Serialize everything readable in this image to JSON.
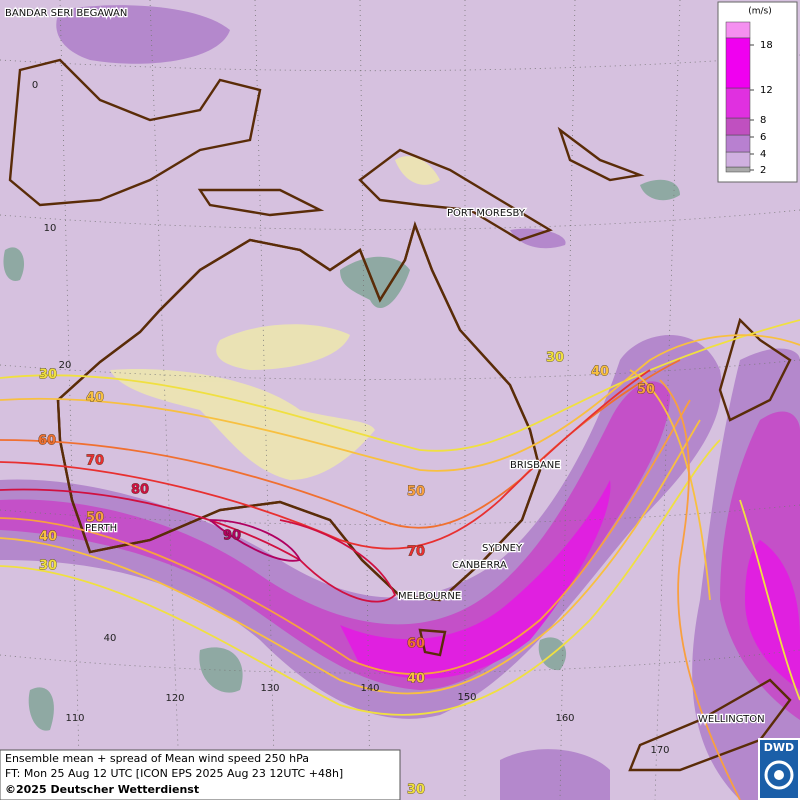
{
  "cities": [
    "BANDAR SERI BEGAWAN",
    "PORT MORESBY",
    "BRISBANE",
    "SYDNEY",
    "CANBERRA",
    "MELBOURNE",
    "PERTH",
    "WELLINGTON"
  ],
  "latitude_labels": [
    "0",
    "10",
    "20",
    "40"
  ],
  "longitude_labels": [
    "110",
    "120",
    "130",
    "140",
    "150",
    "160",
    "170"
  ],
  "contour_labels": [
    30,
    40,
    60,
    70,
    80,
    50,
    40,
    30,
    90,
    50,
    70,
    30,
    40,
    50,
    60,
    40,
    30
  ],
  "legend": {
    "unit": "(m/s)",
    "levels": [
      2,
      4,
      6,
      8,
      12,
      18
    ]
  },
  "footer": {
    "line1": "Ensemble mean + spread of Mean wind speed 250 hPa",
    "line2": "FT: Mon 25 Aug 12 UTC [ICON EPS 2025 Aug 23 12UTC +48h]",
    "line3": "©2025 Deutscher Wetterdienst"
  },
  "logo": "DWD"
}
